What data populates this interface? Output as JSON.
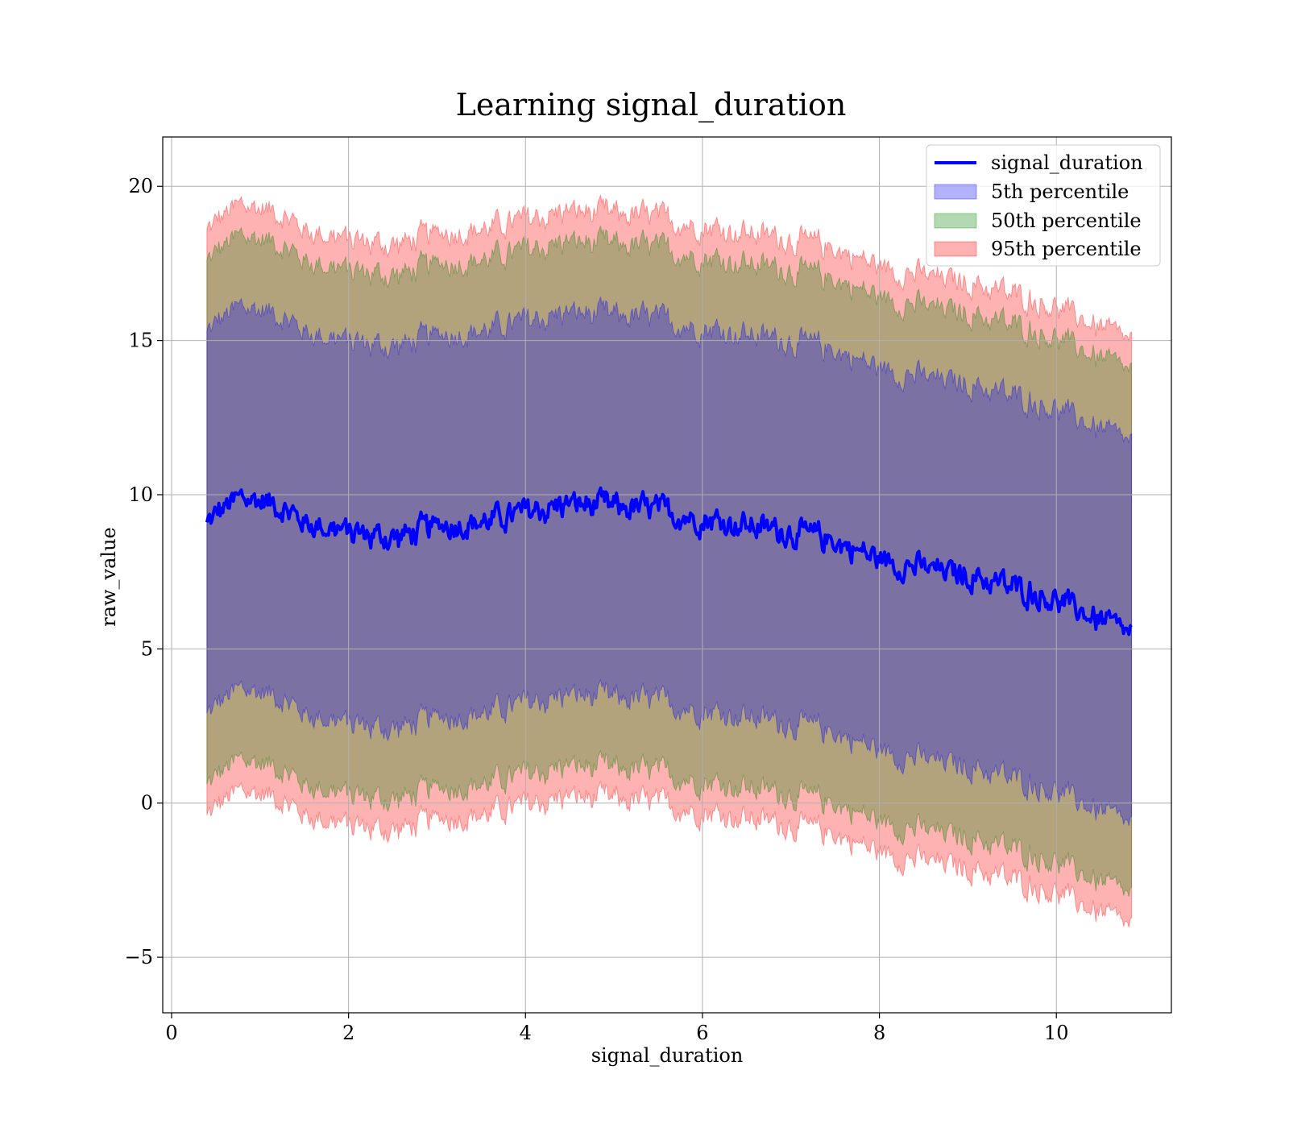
{
  "chart_data": {
    "type": "area",
    "title": "Learning signal_duration",
    "xlabel": "signal_duration",
    "ylabel": "raw_value",
    "xlim": [
      -0.1,
      11.3
    ],
    "ylim": [
      -6.8,
      21.6
    ],
    "xticks": [
      0,
      2,
      4,
      6,
      8,
      10
    ],
    "xtick_labels": [
      "0",
      "2",
      "4",
      "6",
      "8",
      "10"
    ],
    "yticks": [
      -5,
      0,
      5,
      10,
      15,
      20
    ],
    "ytick_labels": [
      "−5",
      "0",
      "5",
      "10",
      "15",
      "20"
    ],
    "grid": true,
    "legend_position": "top-right",
    "x_range": [
      0.4,
      10.85
    ],
    "center_line": {
      "name": "signal_duration",
      "color": "#0000ff",
      "x": [
        0.4,
        0.6,
        0.8,
        1.0,
        1.2,
        1.5,
        2.0,
        2.2,
        2.5,
        3.0,
        3.5,
        4.0,
        4.5,
        5.0,
        5.5,
        6.0,
        6.5,
        7.0,
        7.5,
        8.0,
        8.5,
        9.0,
        9.5,
        10.0,
        10.5,
        10.85
      ],
      "y": [
        9.0,
        9.6,
        9.9,
        9.8,
        9.7,
        9.1,
        8.8,
        8.7,
        8.6,
        9.0,
        9.1,
        9.4,
        9.7,
        9.6,
        9.5,
        9.2,
        9.0,
        8.8,
        8.5,
        7.9,
        7.6,
        7.4,
        7.0,
        6.6,
        5.9,
        5.5
      ]
    },
    "bands": [
      {
        "name": "5th percentile",
        "color": "#0000ff",
        "half_width": 6.2
      },
      {
        "name": "50th percentile",
        "color": "#008000",
        "half_width": 8.5
      },
      {
        "name": "95th percentile",
        "color": "#ff0000",
        "half_width": 9.5
      }
    ]
  }
}
